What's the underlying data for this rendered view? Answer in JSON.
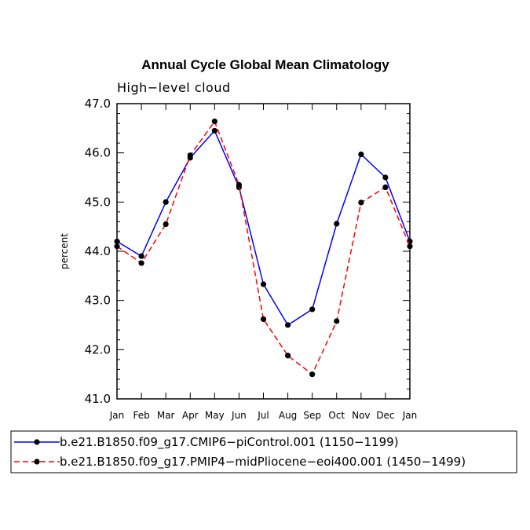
{
  "chart_data": {
    "type": "line",
    "title": "Annual Cycle Global Mean Climatology",
    "subtitle": "High−level cloud",
    "xlabel": "",
    "ylabel": "percent",
    "ylim": [
      41.0,
      47.0
    ],
    "yticks": [
      "41.0",
      "42.0",
      "43.0",
      "44.0",
      "45.0",
      "46.0",
      "47.0"
    ],
    "categories": [
      "Jan",
      "Feb",
      "Mar",
      "Apr",
      "May",
      "Jun",
      "Jul",
      "Aug",
      "Sep",
      "Oct",
      "Nov",
      "Dec",
      "Jan"
    ],
    "series": [
      {
        "name": "b.e21.B1850.f09_g17.CMIP6−piControl.001 (1150−1199)",
        "color": "#0000ff",
        "dash": "solid",
        "values": [
          44.2,
          43.9,
          45.0,
          45.9,
          46.45,
          45.3,
          43.33,
          42.5,
          42.82,
          44.56,
          45.97,
          45.5,
          44.2
        ]
      },
      {
        "name": "b.e21.B1850.f09_g17.PMIP4−midPliocene−eoi400.001 (1450−1499)",
        "color": "#ff0000",
        "dash": "dashed",
        "values": [
          44.1,
          43.76,
          44.55,
          45.95,
          46.64,
          45.35,
          42.62,
          41.88,
          41.5,
          42.58,
          44.99,
          45.3,
          44.1
        ]
      }
    ]
  }
}
